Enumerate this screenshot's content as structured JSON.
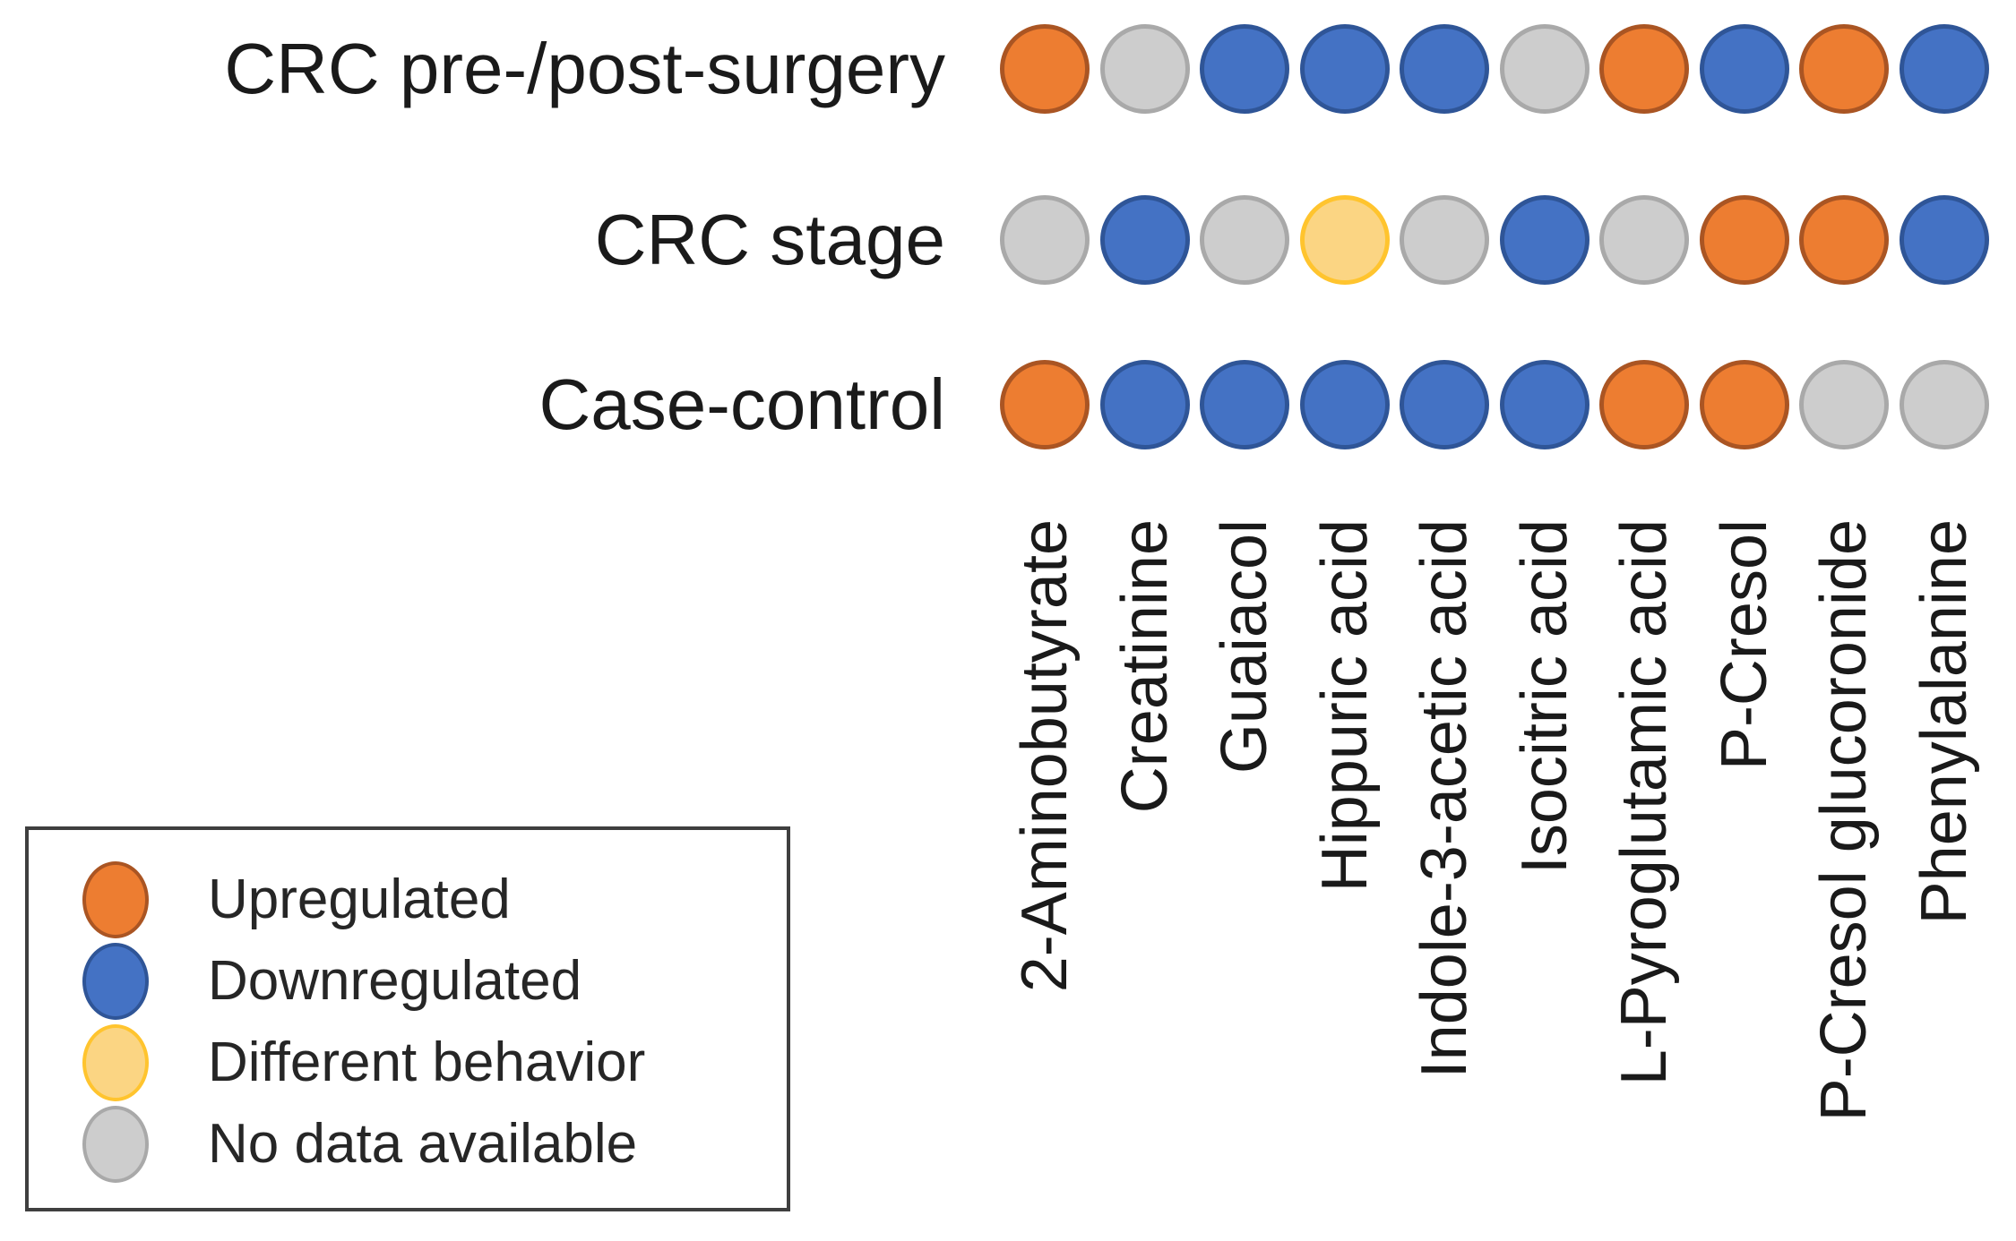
{
  "chart_data": {
    "type": "heatmap",
    "subtype": "dot-matrix",
    "title": "",
    "rows": [
      "CRC pre-/post-surgery",
      "CRC stage",
      "Case-control"
    ],
    "columns": [
      "2-Aminobutyrate",
      "Creatinine",
      "Guaiacol",
      "Hippuric acid",
      "Indole-3-acetic acid",
      "Isocitric acid",
      "L-Pyroglutamic acid",
      "P-Cresol",
      "P-Cresol glucoronide",
      "Phenylalanine"
    ],
    "matrix": [
      [
        "up",
        "none",
        "down",
        "down",
        "down",
        "none",
        "up",
        "down",
        "up",
        "down"
      ],
      [
        "none",
        "down",
        "none",
        "different",
        "none",
        "down",
        "none",
        "up",
        "up",
        "down"
      ],
      [
        "up",
        "down",
        "down",
        "down",
        "down",
        "down",
        "up",
        "up",
        "none",
        "none"
      ]
    ],
    "legend": [
      {
        "key": "up",
        "label": "Upregulated",
        "fill": "#ED7D31",
        "stroke": "#AA5523"
      },
      {
        "key": "down",
        "label": "Downregulated",
        "fill": "#4472C4",
        "stroke": "#2F5597"
      },
      {
        "key": "different",
        "label": "Different behavior",
        "fill": "#FBD583",
        "stroke": "#FFC42E"
      },
      {
        "key": "none",
        "label": "No data available",
        "fill": "#CDCDCD",
        "stroke": "#A9A9A9"
      }
    ],
    "legend_position": "bottom-left",
    "text_color": "#1A1A1A",
    "legend_border_color": "#3F3F3F",
    "grid": false
  }
}
